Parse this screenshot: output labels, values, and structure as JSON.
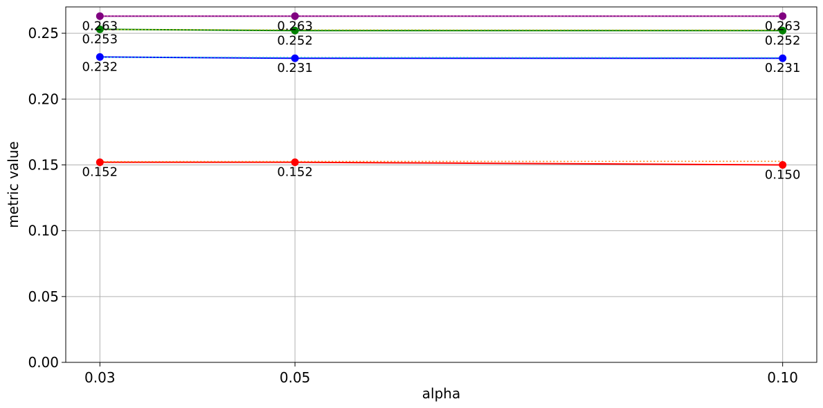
{
  "chart_data": {
    "type": "line",
    "title": "",
    "xlabel": "alpha",
    "ylabel": "metric value",
    "x": [
      0.03,
      0.05,
      0.1
    ],
    "x_tick_labels": [
      "0.03",
      "0.05",
      "0.10"
    ],
    "xlim": [
      0.0265,
      0.1035
    ],
    "ylim": [
      0.0,
      0.27
    ],
    "y_ticks": [
      0.0,
      0.05,
      0.1,
      0.15,
      0.2,
      0.25
    ],
    "y_tick_labels": [
      "0.00",
      "0.05",
      "0.10",
      "0.15",
      "0.20",
      "0.25"
    ],
    "grid": true,
    "legend": "none",
    "series": [
      {
        "color": "#800080",
        "style": "solid",
        "markers": true,
        "values": [
          0.263,
          0.263,
          0.263
        ],
        "data_labels": [
          "0.263",
          "0.263",
          "0.263"
        ]
      },
      {
        "color": "#008000",
        "style": "solid",
        "markers": true,
        "values": [
          0.253,
          0.252,
          0.252
        ],
        "data_labels": [
          "0.253",
          "0.252",
          "0.252"
        ]
      },
      {
        "color": "#0000ff",
        "style": "solid",
        "markers": true,
        "values": [
          0.232,
          0.231,
          0.231
        ],
        "data_labels": [
          "0.232",
          "0.231",
          "0.231"
        ]
      },
      {
        "color": "#ff0000",
        "style": "solid",
        "markers": true,
        "values": [
          0.152,
          0.152,
          0.15
        ],
        "data_labels": [
          "0.152",
          "0.152",
          "0.150"
        ]
      },
      {
        "color": "#bcbd22",
        "style": "dotted",
        "markers": false,
        "values": [
          0.2528,
          0.2526,
          0.2524
        ]
      },
      {
        "color": "#17becf",
        "style": "dotted",
        "markers": false,
        "values": [
          0.2318,
          0.2316,
          0.2314
        ]
      },
      {
        "color": "#ff7f0e",
        "style": "dotted",
        "markers": false,
        "values": [
          0.1525,
          0.1526,
          0.1527
        ]
      },
      {
        "color": "#e377c2",
        "style": "dotted",
        "markers": false,
        "values": [
          0.2632,
          0.2632,
          0.2632
        ]
      }
    ]
  }
}
